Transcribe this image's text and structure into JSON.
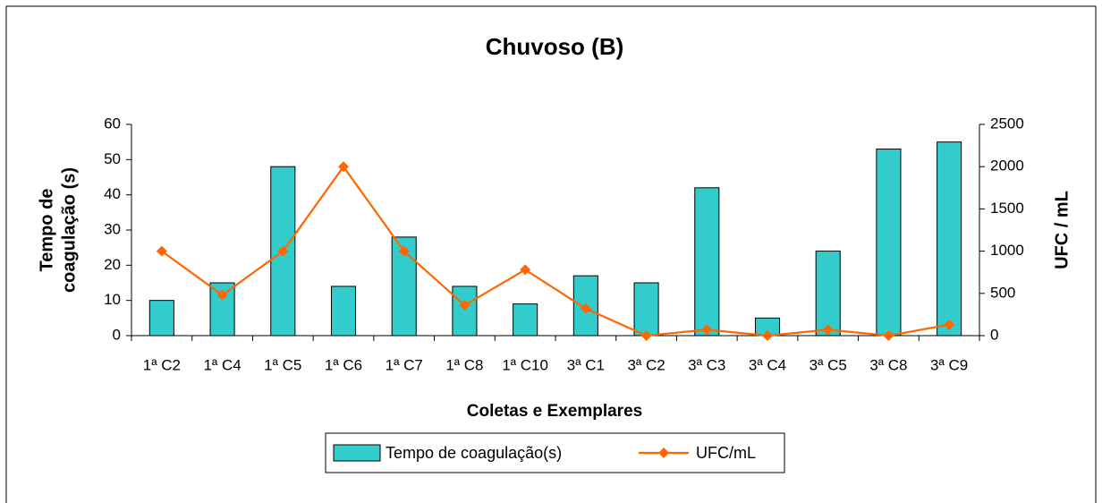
{
  "chart_data": {
    "type": "bar-line",
    "title": "Chuvoso (B)",
    "xlabel": "Coletas e Exemplares",
    "ylabel": [
      "Tempo de",
      "coagulação (s)"
    ],
    "y2label": "UFC / mL",
    "categories": [
      "1ª C2",
      "1ª C4",
      "1ª C5",
      "1ª C6",
      "1ª C7",
      "1ª C8",
      "1ª C10",
      "3ª C1",
      "3ª C2",
      "3ª C3",
      "3ª C4",
      "3ª C5",
      "3ª C8",
      "3ª C9"
    ],
    "series": [
      {
        "name": "Tempo de coagulação(s)",
        "type": "bar",
        "color": "#33cccc",
        "values": [
          10,
          15,
          48,
          14,
          28,
          14,
          9,
          17,
          15,
          42,
          5,
          24,
          53,
          55
        ]
      },
      {
        "name": "UFC/mL",
        "type": "line",
        "axis": "y2",
        "color": "#ff6600",
        "values": [
          1000,
          480,
          1000,
          2000,
          1000,
          360,
          780,
          320,
          0,
          70,
          0,
          70,
          0,
          130
        ]
      }
    ],
    "ylim": [
      0,
      60
    ],
    "yticks": [
      0,
      10,
      20,
      30,
      40,
      50,
      60
    ],
    "y2lim": [
      0,
      2500
    ],
    "y2ticks": [
      0,
      500,
      1000,
      1500,
      2000,
      2500
    ],
    "legend": "bottom"
  }
}
